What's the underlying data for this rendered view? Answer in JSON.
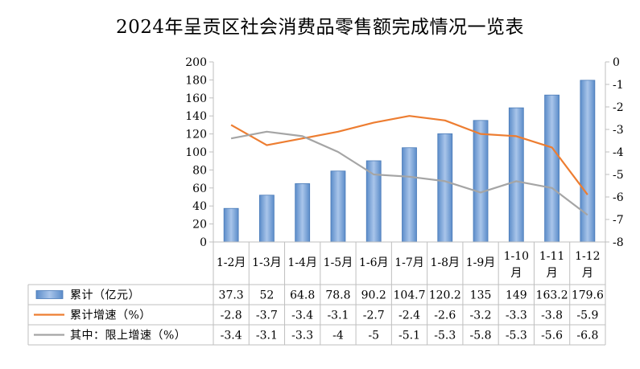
{
  "chart_data": {
    "type": "bar",
    "title": "2024年呈贡区社会消费品零售额完成情况一览表",
    "categories": [
      "1-2月",
      "1-3月",
      "1-4月",
      "1-5月",
      "1-6月",
      "1-7月",
      "1-8月",
      "1-9月",
      "1-10月",
      "1-11月",
      "1-12月"
    ],
    "ylim": [
      0,
      200
    ],
    "y2lim": [
      -8,
      0
    ],
    "y_ticks": [
      0,
      20,
      40,
      60,
      80,
      100,
      120,
      140,
      160,
      180,
      200
    ],
    "y2_ticks": [
      0,
      -1,
      -2,
      -3,
      -4,
      -5,
      -6,
      -7,
      -8
    ],
    "grid": false,
    "legend": "data-table",
    "series": [
      {
        "name": "累计（亿元）",
        "type": "bar",
        "axis": "left",
        "color": "#6f9bd2",
        "values": [
          37.3,
          52,
          64.8,
          78.8,
          90.2,
          104.7,
          120.2,
          135,
          149,
          163.2,
          179.6
        ]
      },
      {
        "name": "累计增速（%）",
        "type": "line",
        "axis": "right",
        "color": "#ed7d31",
        "values": [
          -2.8,
          -3.7,
          -3.4,
          -3.1,
          -2.7,
          -2.4,
          -2.6,
          -3.2,
          -3.3,
          -3.8,
          -5.9
        ]
      },
      {
        "name": "其中：限上增速（%）",
        "type": "line",
        "axis": "right",
        "color": "#a5a5a5",
        "values": [
          -3.4,
          -3.1,
          -3.3,
          -4,
          -5,
          -5.1,
          -5.3,
          -5.8,
          -5.3,
          -5.6,
          -6.8
        ]
      }
    ]
  }
}
